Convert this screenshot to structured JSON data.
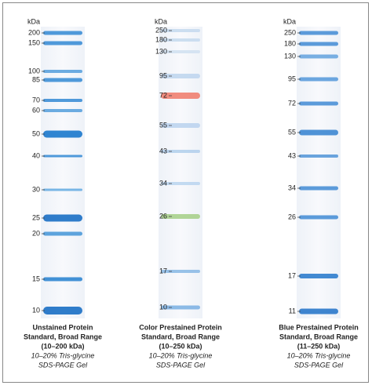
{
  "lanes": [
    {
      "unit": "kDa",
      "bands": [
        "200",
        "150",
        "100",
        "85",
        "70",
        "60",
        "50",
        "40",
        "30",
        "25",
        "20",
        "15",
        "10"
      ],
      "caption": [
        "Unstained Protein",
        "Standard, Broad Range",
        "(10–200 kDa)"
      ],
      "note": [
        "10–20% Tris-glycine",
        "SDS-PAGE Gel"
      ]
    },
    {
      "unit": "kDa",
      "bands": [
        "250",
        "180",
        "130",
        "95",
        "72",
        "55",
        "43",
        "34",
        "26",
        "17",
        "10"
      ],
      "caption": [
        "Color Prestained Protein",
        "Standard, Broad Range",
        "(10–250 kDa)"
      ],
      "note": [
        "10–20% Tris-glycine",
        "SDS-PAGE Gel"
      ]
    },
    {
      "unit": "kDa",
      "bands": [
        "250",
        "180",
        "130",
        "95",
        "72",
        "55",
        "43",
        "34",
        "26",
        "17",
        "11"
      ],
      "caption": [
        "Blue Prestained Protein",
        "Standard, Broad Range",
        "(11–250 kDa)"
      ],
      "note": [
        "10–20% Tris-glycine",
        "SDS-PAGE Gel"
      ]
    }
  ]
}
